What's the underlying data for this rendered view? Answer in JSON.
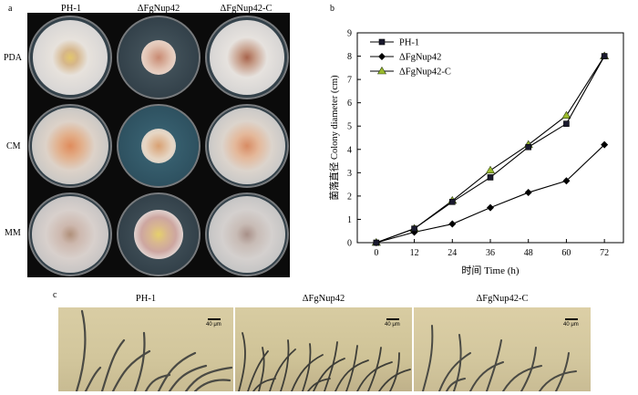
{
  "panel_a": {
    "letter": "a",
    "columns": [
      "PH-1",
      "ΔFgNup42",
      "ΔFgNup42-C"
    ],
    "rows": [
      "PDA",
      "CM",
      "MM"
    ]
  },
  "panel_b": {
    "letter": "b"
  },
  "panel_c": {
    "letter": "c",
    "labels": [
      "PH-1",
      "ΔFgNup42",
      "ΔFgNup42-C"
    ],
    "scale_text": "40 μm"
  },
  "chart_data": {
    "type": "line",
    "xlabel": "时间 Time (h)",
    "ylabel": "菌落直径 Colony diameter (cm)",
    "x": [
      0,
      12,
      24,
      36,
      48,
      60,
      72
    ],
    "xticks": [
      0,
      12,
      24,
      36,
      48,
      60,
      72
    ],
    "yticks": [
      0,
      1,
      2,
      3,
      4,
      5,
      6,
      7,
      8,
      9
    ],
    "xlim": [
      -6,
      78
    ],
    "ylim": [
      0,
      9
    ],
    "legend_position": "top-left",
    "series": [
      {
        "name": "PH-1",
        "marker": "square",
        "color": "#1a1a2e",
        "values": [
          0,
          0.6,
          1.75,
          2.8,
          4.1,
          5.1,
          8.0
        ]
      },
      {
        "name": "ΔFgNup42",
        "marker": "diamond",
        "color": "#000000",
        "values": [
          0,
          0.45,
          0.8,
          1.5,
          2.15,
          2.65,
          4.2
        ]
      },
      {
        "name": "ΔFgNup42-C",
        "marker": "triangle",
        "color": "#9bbb2e",
        "values": [
          0,
          0.6,
          1.8,
          3.1,
          4.2,
          5.45,
          8.0
        ]
      }
    ]
  }
}
